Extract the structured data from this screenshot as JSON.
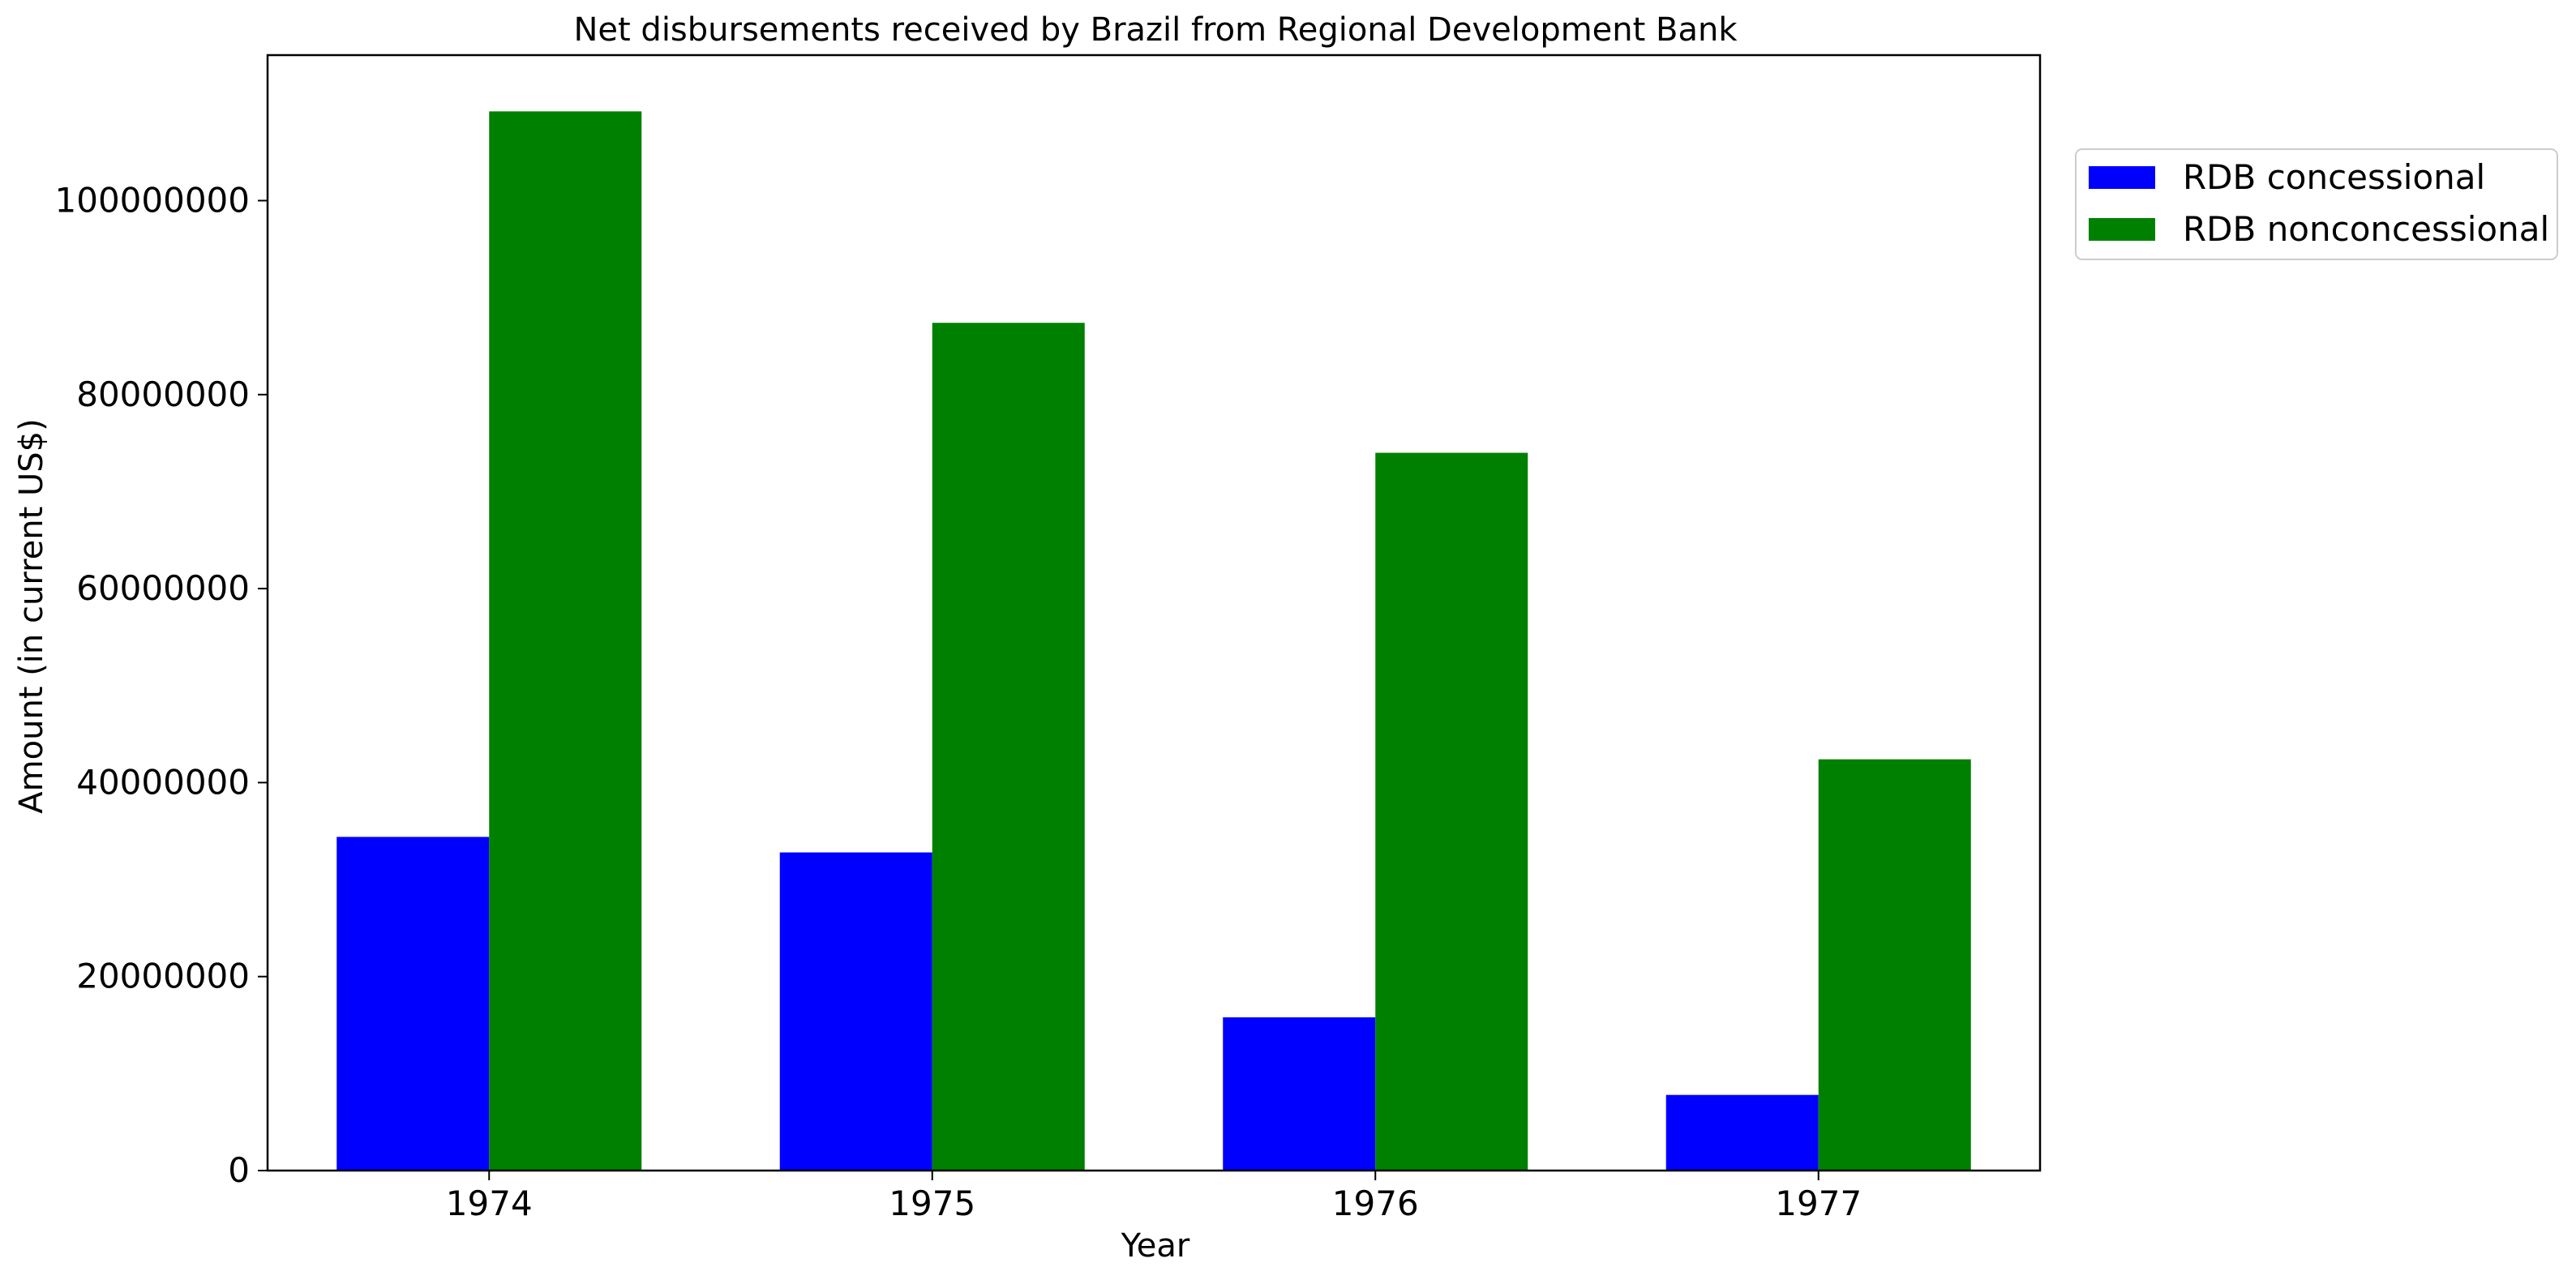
{
  "chart_data": {
    "type": "bar",
    "title": "Net disbursements received by Brazil from Regional Development Bank",
    "xlabel": "Year",
    "ylabel": "Amount (in current US$)",
    "categories": [
      "1974",
      "1975",
      "1976",
      "1977"
    ],
    "series": [
      {
        "name": "RDB concessional",
        "color": "#0000ff",
        "values": [
          34400000,
          32800000,
          15800000,
          7800000
        ]
      },
      {
        "name": "RDB nonconcessional",
        "color": "#008000",
        "values": [
          109200000,
          87400000,
          74000000,
          42400000
        ]
      }
    ],
    "ylim": [
      0,
      115000000
    ],
    "yticks": [
      0,
      20000000,
      40000000,
      60000000,
      80000000,
      100000000
    ],
    "ytick_labels": [
      "0",
      "20000000",
      "40000000",
      "60000000",
      "80000000",
      "100000000"
    ],
    "grid": false,
    "legend_position": "outside-top-right"
  }
}
